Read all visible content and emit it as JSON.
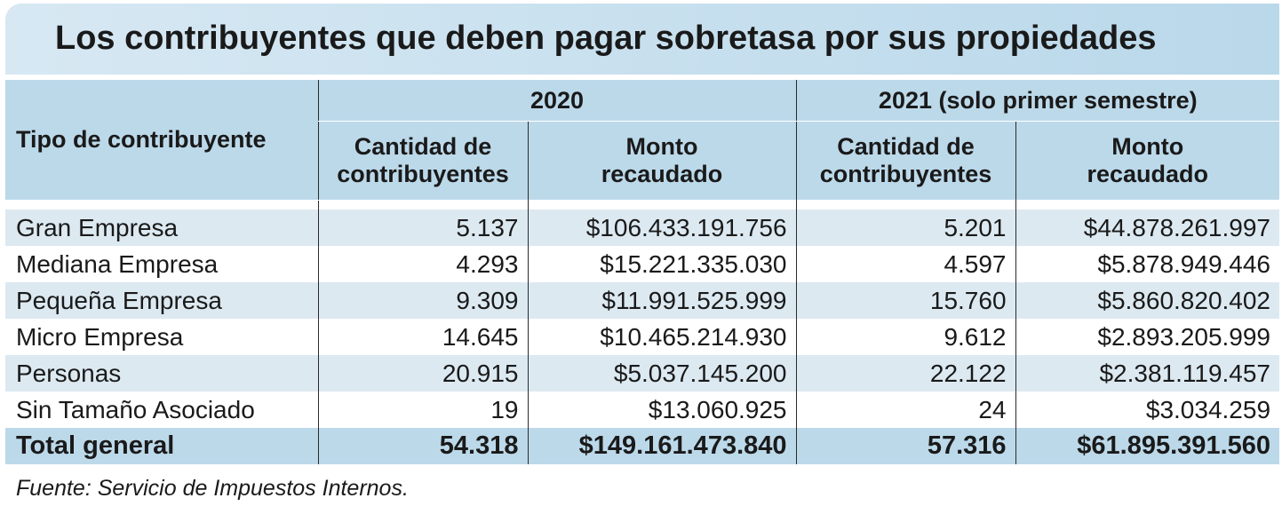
{
  "title": "Los contribuyentes que deben pagar sobretasa por sus propiedades",
  "headers": {
    "type": "Tipo de contribuyente",
    "year2020": "2020",
    "year2021": "2021 (solo primer semestre)",
    "count_line1": "Cantidad de",
    "count_line2": "contribuyentes",
    "amount_line1": "Monto",
    "amount_line2": "recaudado"
  },
  "rows": [
    {
      "type": "Gran Empresa",
      "c2020": "5.137",
      "m2020": "$106.433.191.756",
      "c2021": "5.201",
      "m2021": "$44.878.261.997"
    },
    {
      "type": "Mediana Empresa",
      "c2020": "4.293",
      "m2020": "$15.221.335.030",
      "c2021": "4.597",
      "m2021": "$5.878.949.446"
    },
    {
      "type": "Pequeña Empresa",
      "c2020": "9.309",
      "m2020": "$11.991.525.999",
      "c2021": "15.760",
      "m2021": "$5.860.820.402"
    },
    {
      "type": "Micro Empresa",
      "c2020": "14.645",
      "m2020": "$10.465.214.930",
      "c2021": "9.612",
      "m2021": "$2.893.205.999"
    },
    {
      "type": "Personas",
      "c2020": "20.915",
      "m2020": "$5.037.145.200",
      "c2021": "22.122",
      "m2021": "$2.381.119.457"
    },
    {
      "type": "Sin Tamaño Asociado",
      "c2020": "19",
      "m2020": "$13.060.925",
      "c2021": "24",
      "m2021": "$3.034.259"
    }
  ],
  "total": {
    "type": "Total general",
    "c2020": "54.318",
    "m2020": "$149.161.473.840",
    "c2021": "57.316",
    "m2021": "$61.895.391.560"
  },
  "source": "Fuente: Servicio de Impuestos Internos.",
  "colors": {
    "header_bg": "#bcd9ea",
    "stripe": "#dce9f1"
  }
}
